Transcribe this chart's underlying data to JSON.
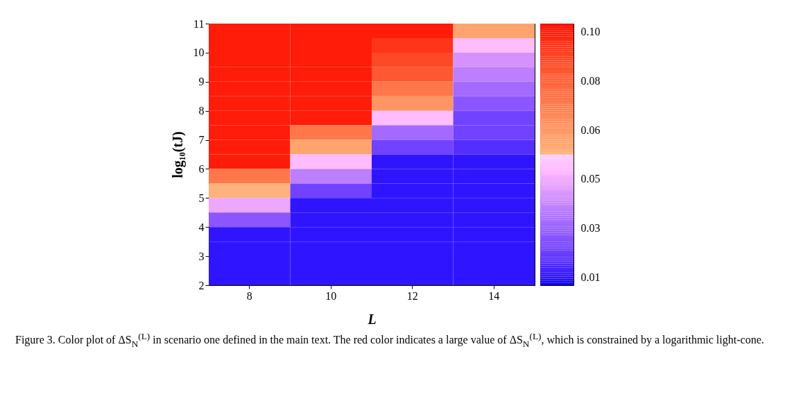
{
  "chart_data": {
    "type": "heatmap",
    "xlabel": "L",
    "ylabel": "log₁₀(tJ)",
    "categories": [
      "8",
      "10",
      "12",
      "14"
    ],
    "ylim": [
      2,
      11
    ],
    "yticks": [
      2,
      3,
      4,
      5,
      6,
      7,
      8,
      9,
      10,
      11
    ],
    "cells": [
      [
        0.1,
        0.1,
        0.1,
        0.06
      ],
      [
        0.1,
        0.1,
        0.095,
        0.05
      ],
      [
        0.1,
        0.1,
        0.09,
        0.04
      ],
      [
        0.1,
        0.1,
        0.085,
        0.035
      ],
      [
        0.1,
        0.1,
        0.075,
        0.03
      ],
      [
        0.1,
        0.1,
        0.065,
        0.025
      ],
      [
        0.1,
        0.1,
        0.05,
        0.02
      ],
      [
        0.1,
        0.075,
        0.03,
        0.02
      ],
      [
        0.1,
        0.06,
        0.02,
        0.015
      ],
      [
        0.1,
        0.05,
        0.01,
        0.01
      ],
      [
        0.075,
        0.035,
        0.01,
        0.01
      ],
      [
        0.055,
        0.02,
        0.01,
        0.01
      ],
      [
        0.045,
        0.01,
        0.01,
        0.01
      ],
      [
        0.025,
        0.01,
        0.01,
        0.01
      ],
      [
        0.01,
        0.01,
        0.01,
        0.01
      ],
      [
        0.01,
        0.01,
        0.01,
        0.01
      ],
      [
        0.01,
        0.01,
        0.01,
        0.01
      ],
      [
        0.01,
        0.01,
        0.01,
        0.01
      ]
    ],
    "clim": [
      0.007,
      0.103
    ],
    "cticks": [
      {
        "value": 0.01,
        "label": "0.01"
      },
      {
        "value": 0.028,
        "label": "0.03"
      },
      {
        "value": 0.046,
        "label": "0.05"
      },
      {
        "value": 0.064,
        "label": "0.06"
      },
      {
        "value": 0.082,
        "label": "0.08"
      },
      {
        "value": 0.1,
        "label": "0.10"
      }
    ],
    "annotations": [
      "Figure 3. Color plot of ΔS$_{N}$$^{(L)}$ in scenario one defined in the main text. The red color indicates a large value of ΔS$_{N}$$^{(L)}$, which is constrained by a logarithmic light-cone."
    ]
  }
}
